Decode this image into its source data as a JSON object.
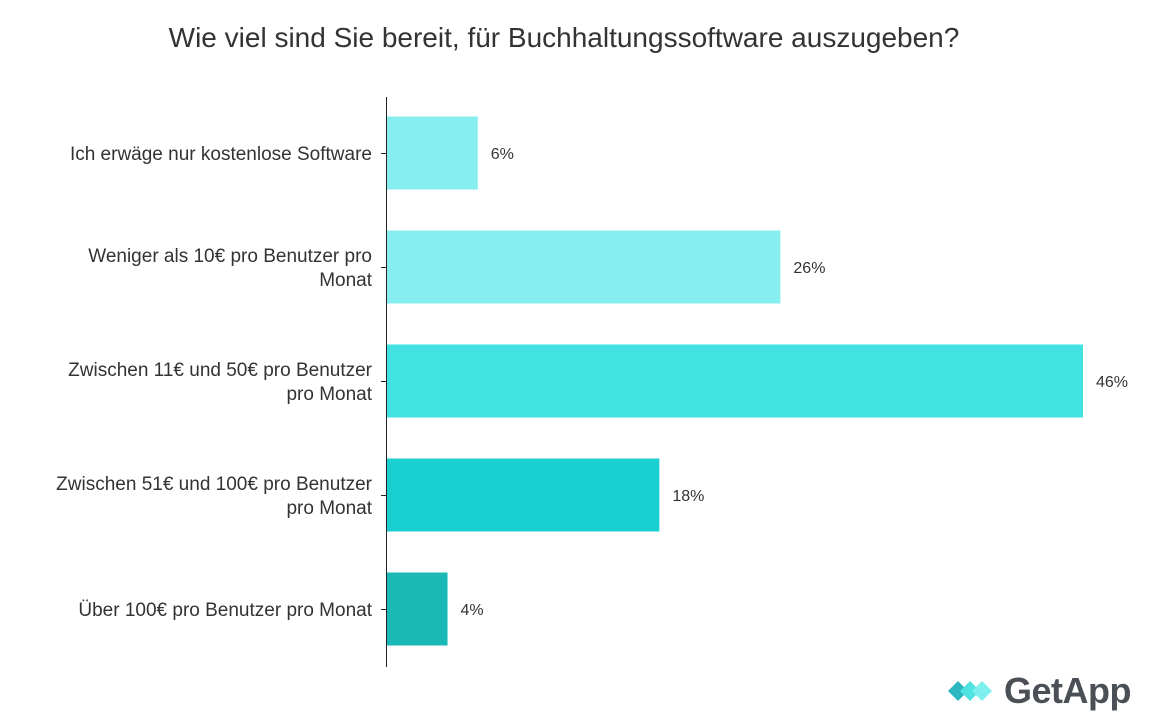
{
  "chart_data": {
    "type": "bar",
    "orientation": "horizontal",
    "title": "Wie viel sind Sie bereit, für Buchhaltungssoftware auszugeben?",
    "categories": [
      [
        "Ich erwäge nur kostenlose Software"
      ],
      [
        "Weniger als 10€ pro Benutzer pro",
        "Monat"
      ],
      [
        "Zwischen 11€ und 50€ pro Benutzer",
        "pro Monat"
      ],
      [
        "Zwischen 51€ und 100€ pro Benutzer",
        "pro Monat"
      ],
      [
        "Über 100€ pro Benutzer pro Monat"
      ]
    ],
    "values": [
      6,
      26,
      46,
      18,
      4
    ],
    "value_labels": [
      "6%",
      "26%",
      "46%",
      "18%",
      "4%"
    ],
    "bar_colors": [
      "#87eef0",
      "#87eef0",
      "#42e2e3",
      "#19cfd0",
      "#1bb9b5"
    ],
    "xlim": [
      0,
      46
    ],
    "grid": false,
    "legend": "none"
  },
  "logo": {
    "text": "GetApp",
    "colors": [
      "#2cb6c0",
      "#50e3e2",
      "#7df0ee"
    ]
  }
}
